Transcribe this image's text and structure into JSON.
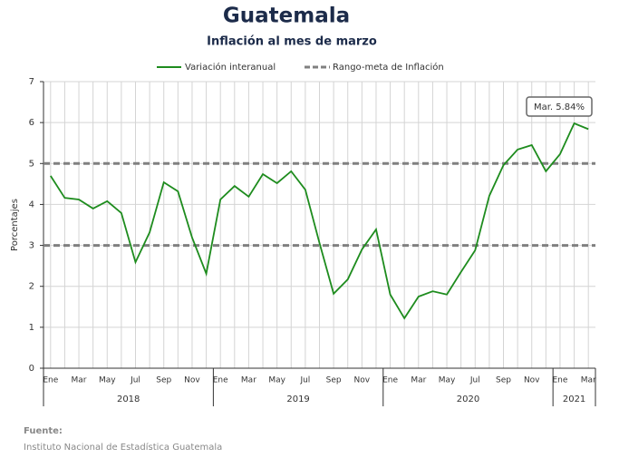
{
  "chart_data": {
    "type": "line",
    "title": "Guatemala",
    "subtitle": "Inflación al mes de marzo",
    "y_label": "Porcentajes",
    "categories": [
      "Ene",
      null,
      "Mar",
      null,
      "May",
      null,
      "Jul",
      null,
      "Sep",
      null,
      "Nov",
      null,
      "Ene",
      null,
      "Mar",
      null,
      "May",
      null,
      "Jul",
      null,
      "Sep",
      null,
      "Nov",
      null,
      "Ene",
      null,
      "Mar",
      null,
      "May",
      null,
      "Jul",
      null,
      "Sep",
      null,
      "Nov",
      null,
      "Ene",
      null,
      "Mar"
    ],
    "year_labels": [
      "2018",
      "2019",
      "2020",
      "2021"
    ],
    "series": [
      {
        "name": "Variación interanual",
        "color": "#1e8c1e",
        "values": [
          4.7,
          4.16,
          4.12,
          3.9,
          4.08,
          3.79,
          2.59,
          3.32,
          4.54,
          4.32,
          3.19,
          2.31,
          4.12,
          4.45,
          4.19,
          4.74,
          4.52,
          4.81,
          4.36,
          3.06,
          1.82,
          2.17,
          2.9,
          3.39,
          1.8,
          1.22,
          1.75,
          1.88,
          1.8,
          2.35,
          2.88,
          4.21,
          4.96,
          5.34,
          5.45,
          4.81,
          5.23,
          5.98,
          5.84
        ]
      }
    ],
    "reference_lines": {
      "name": "Rango-meta de Inflación",
      "color": "#808080",
      "values": [
        3,
        5
      ]
    },
    "annotation": "Mar. 5.84%",
    "ylim": [
      0,
      7
    ],
    "yticks": [
      0,
      1,
      2,
      3,
      4,
      5,
      6,
      7
    ],
    "grid": true,
    "source_label": "Fuente:",
    "source": "Instituto Nacional de Estadística Guatemala"
  }
}
